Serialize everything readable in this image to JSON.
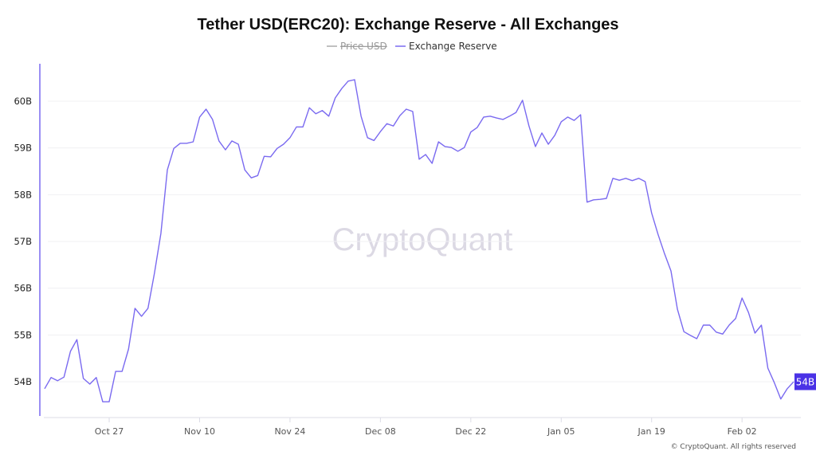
{
  "chart_data": {
    "type": "line",
    "title": "Tether USD(ERC20): Exchange Reserve - All Exchanges",
    "legend": [
      {
        "name": "Price USD",
        "color": "#aaaaaa",
        "hidden": true
      },
      {
        "name": "Exchange Reserve",
        "color": "#7a6af0",
        "hidden": false
      }
    ],
    "legend_placement": "top-center",
    "watermark": "CryptoQuant",
    "footer": "© CryptoQuant. All rights reserved",
    "y_ticks": [
      "60B",
      "59B",
      "58B",
      "57B",
      "56B",
      "55B",
      "54B"
    ],
    "y_tick_values": [
      60,
      59,
      58,
      57,
      56,
      55,
      54
    ],
    "x_ticks": [
      "Oct 27",
      "Nov 10",
      "Nov 24",
      "Dec 08",
      "Dec 22",
      "Jan 05",
      "Jan 19",
      "Feb 02"
    ],
    "ylabel_unit": "B",
    "ylim": [
      53.27,
      60.8
    ],
    "grid": true,
    "current_value_label": "54B",
    "current_value_color": "#4a32e6",
    "x": [
      "Oct 17",
      "Oct 18",
      "Oct 19",
      "Oct 20",
      "Oct 21",
      "Oct 22",
      "Oct 23",
      "Oct 24",
      "Oct 25",
      "Oct 26",
      "Oct 27",
      "Oct 28",
      "Oct 29",
      "Oct 30",
      "Oct 31",
      "Nov 01",
      "Nov 02",
      "Nov 03",
      "Nov 04",
      "Nov 05",
      "Nov 06",
      "Nov 07",
      "Nov 08",
      "Nov 09",
      "Nov 10",
      "Nov 11",
      "Nov 12",
      "Nov 13",
      "Nov 14",
      "Nov 15",
      "Nov 16",
      "Nov 17",
      "Nov 18",
      "Nov 19",
      "Nov 20",
      "Nov 21",
      "Nov 22",
      "Nov 23",
      "Nov 24",
      "Nov 25",
      "Nov 26",
      "Nov 27",
      "Nov 28",
      "Nov 29",
      "Nov 30",
      "Dec 01",
      "Dec 02",
      "Dec 03",
      "Dec 04",
      "Dec 05",
      "Dec 06",
      "Dec 07",
      "Dec 08",
      "Dec 09",
      "Dec 10",
      "Dec 11",
      "Dec 12",
      "Dec 13",
      "Dec 14",
      "Dec 15",
      "Dec 16",
      "Dec 17",
      "Dec 18",
      "Dec 19",
      "Dec 20",
      "Dec 21",
      "Dec 22",
      "Dec 23",
      "Dec 24",
      "Dec 25",
      "Dec 26",
      "Dec 27",
      "Dec 28",
      "Dec 29",
      "Dec 30",
      "Dec 31",
      "Jan 01",
      "Jan 02",
      "Jan 03",
      "Jan 04",
      "Jan 05",
      "Jan 06",
      "Jan 07",
      "Jan 08",
      "Jan 09",
      "Jan 10",
      "Jan 11",
      "Jan 12",
      "Jan 13",
      "Jan 14",
      "Jan 15",
      "Jan 16",
      "Jan 17",
      "Jan 18",
      "Jan 19",
      "Jan 20",
      "Jan 21",
      "Jan 22",
      "Jan 23",
      "Jan 24",
      "Jan 25",
      "Jan 26",
      "Jan 27",
      "Jan 28",
      "Jan 29",
      "Jan 30",
      "Jan 31",
      "Feb 01",
      "Feb 02",
      "Feb 03",
      "Feb 04",
      "Feb 05",
      "Feb 06",
      "Feb 07",
      "Feb 08",
      "Feb 09",
      "Feb 10"
    ],
    "series": [
      {
        "name": "Exchange Reserve",
        "values": [
          53.85,
          54.09,
          54.02,
          54.1,
          54.65,
          54.9,
          54.07,
          53.95,
          54.09,
          53.57,
          53.57,
          54.22,
          54.22,
          54.7,
          55.57,
          55.4,
          55.57,
          56.32,
          57.17,
          58.53,
          58.99,
          59.1,
          59.1,
          59.13,
          59.66,
          59.83,
          59.61,
          59.15,
          58.96,
          59.15,
          59.08,
          58.53,
          58.36,
          58.41,
          58.82,
          58.81,
          58.99,
          59.08,
          59.22,
          59.45,
          59.45,
          59.86,
          59.73,
          59.8,
          59.68,
          60.07,
          60.27,
          60.43,
          60.46,
          59.68,
          59.22,
          59.16,
          59.35,
          59.52,
          59.47,
          59.69,
          59.83,
          59.78,
          58.76,
          58.86,
          58.67,
          59.13,
          59.03,
          59.01,
          58.93,
          59.01,
          59.34,
          59.44,
          59.66,
          59.68,
          59.64,
          59.61,
          59.68,
          59.76,
          60.02,
          59.47,
          59.03,
          59.32,
          59.08,
          59.27,
          59.56,
          59.66,
          59.59,
          59.71,
          57.84,
          57.89,
          57.9,
          57.92,
          58.35,
          58.31,
          58.35,
          58.3,
          58.35,
          58.28,
          57.61,
          57.15,
          56.74,
          56.37,
          55.55,
          55.07,
          54.99,
          54.92,
          55.21,
          55.21,
          55.06,
          55.02,
          55.21,
          55.35,
          55.79,
          55.48,
          55.04,
          55.21,
          54.29,
          53.98,
          53.63,
          53.85,
          54.0
        ]
      }
    ]
  }
}
